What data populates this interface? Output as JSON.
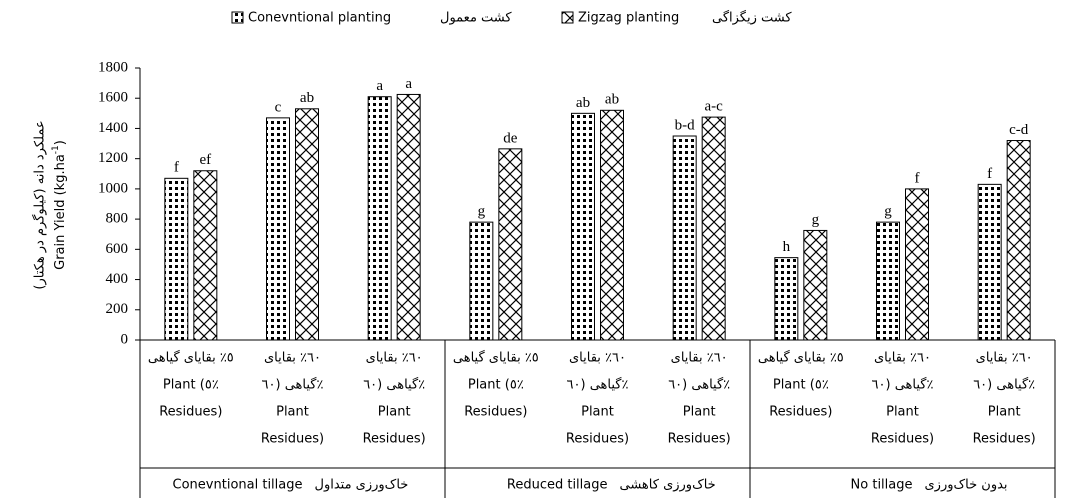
{
  "chart_data": {
    "type": "bar",
    "y_label_fa": "عملکرد دانه (کیلوگرم در هکتار)",
    "y_label_en": "Grain Yield (kg.ha",
    "y_label_sup": "-1",
    "y_label_end": ")",
    "categories": [
      [
        "٥٪ بقایای گیاهی",
        "Plant (٥٪",
        "Residues)"
      ],
      [
        "٦٠٪ بقایای",
        "گیاهی (٦٠٪",
        "Plant",
        "Residues)"
      ],
      [
        "٦٠٪ بقایای",
        "گیاهی (٦٠٪",
        "Plant",
        "Residues)"
      ],
      [
        "٥٪ بقایای گیاهی",
        "Plant (٥٪",
        "Residues)"
      ],
      [
        "٦٠٪ بقایای",
        "گیاهی (٦٠٪",
        "Plant",
        "Residues)"
      ],
      [
        "٦٠٪ بقایای",
        "گیاهی (٦٠٪",
        "Plant",
        "Residues)"
      ],
      [
        "٥٪ بقایای گیاهی",
        "Plant (٥٪",
        "Residues)"
      ],
      [
        "٦٠٪ بقایای",
        "گیاهی (٦٠٪",
        "Plant",
        "Residues)"
      ],
      [
        "٦٠٪ بقایای",
        "گیاهی (٦٠٪",
        "Plant",
        "Residues)"
      ]
    ],
    "groups": [
      {
        "name": "Conevntional tillage",
        "name_fa": "خاک‌ورزی متداول"
      },
      {
        "name": "Reduced tillage",
        "name_fa": "خاک‌ورزی کاهشی"
      },
      {
        "name": "No tillage",
        "name_fa": "بدون خاک‌ورزی"
      }
    ],
    "series": [
      {
        "name": "Conevntional planting",
        "name_fa": "کشت معمول",
        "color": "#000000",
        "pattern": "dots",
        "values": [
          1070,
          1470,
          1610,
          780,
          1500,
          1350,
          545,
          780,
          1030
        ],
        "letters": [
          "f",
          "c",
          "a",
          "g",
          "ab",
          "b-d",
          "h",
          "g",
          "f"
        ]
      },
      {
        "name": "Zigzag planting",
        "name_fa": "کشت زیگزاگی",
        "color": "#000000",
        "pattern": "zigzag",
        "values": [
          1120,
          1530,
          1625,
          1265,
          1520,
          1475,
          725,
          1000,
          1320
        ],
        "letters": [
          "ef",
          "ab",
          "a",
          "de",
          "ab",
          "a-c",
          "g",
          "f",
          "c-d"
        ]
      }
    ],
    "ylim": [
      0,
      1800
    ],
    "yticks": [
      0,
      200,
      400,
      600,
      800,
      1000,
      1200,
      1400,
      1600,
      1800
    ],
    "grid": false
  }
}
